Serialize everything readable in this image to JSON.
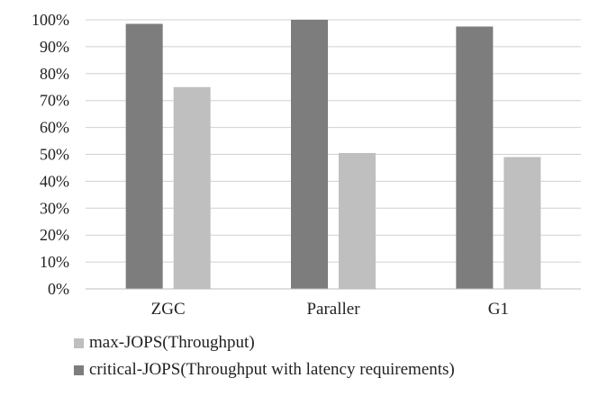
{
  "chart_data": {
    "type": "bar",
    "title": "",
    "xlabel": "",
    "ylabel": "",
    "categories": [
      "ZGC",
      "Paraller",
      "G1"
    ],
    "series": [
      {
        "name": "critical-JOPS(Throughput with latency requirements)",
        "values": [
          98.5,
          100,
          97.5
        ],
        "color": "#7d7d7d"
      },
      {
        "name": "max-JOPS(Throughput)",
        "values": [
          75,
          50.5,
          49
        ],
        "color": "#bfbfbf"
      }
    ],
    "ylim": [
      0,
      100
    ],
    "yticks": [
      "0%",
      "10%",
      "20%",
      "30%",
      "40%",
      "50%",
      "60%",
      "70%",
      "80%",
      "90%",
      "100%"
    ],
    "grid": true,
    "legend_position": "bottom",
    "legend_order": [
      1,
      0
    ]
  }
}
